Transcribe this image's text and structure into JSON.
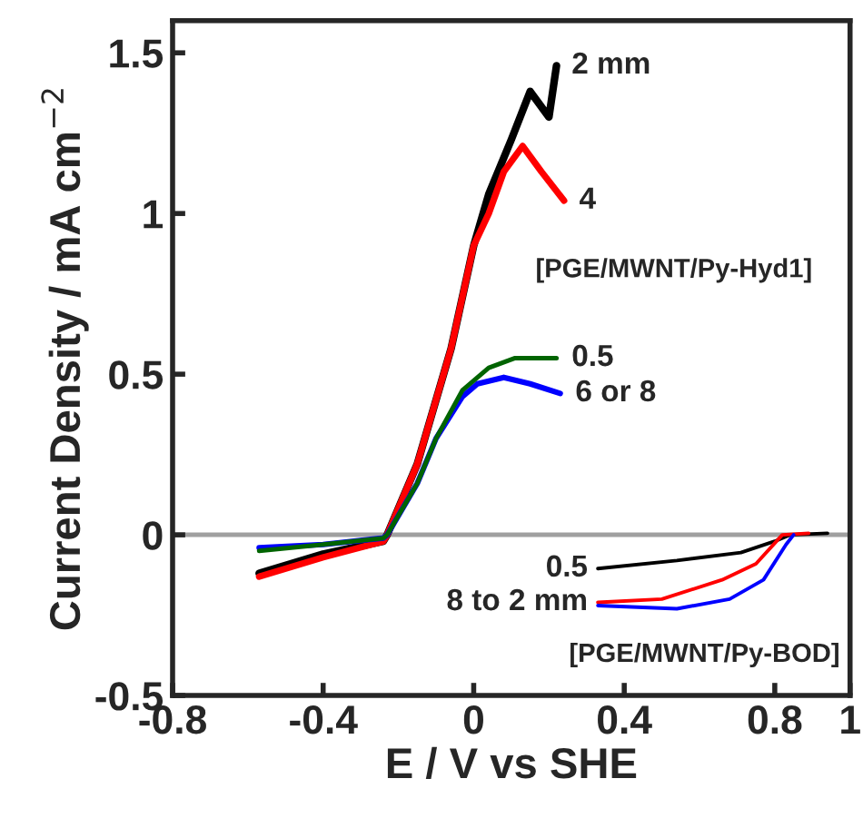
{
  "chart_data": {
    "type": "line",
    "xlabel": "E / V vs SHE",
    "ylabel": "Current Density / mA cm$^{−2}$",
    "xlim": [
      -0.8,
      1
    ],
    "xticks": [
      -0.8,
      -0.4,
      0,
      0.4,
      0.8,
      1
    ],
    "ylim": [
      -0.5,
      1.6
    ],
    "yticks": [
      -0.5,
      0,
      0.5,
      1,
      1.5
    ],
    "grid": false,
    "legend": false,
    "series": [
      {
        "name": "2 mm",
        "color": "#000000",
        "x": [
          -0.57,
          -0.4,
          -0.24,
          -0.23,
          -0.15,
          -0.06,
          0,
          0.04,
          0.1,
          0.15,
          0.2,
          0.22
        ],
        "values": [
          -0.12,
          -0.06,
          -0.02,
          0,
          0.22,
          0.58,
          0.9,
          1.06,
          1.23,
          1.38,
          1.3,
          1.46
        ]
      },
      {
        "name": "4",
        "color": "#ff0000",
        "x": [
          -0.57,
          -0.4,
          -0.24,
          -0.23,
          -0.15,
          -0.06,
          0,
          0.04,
          0.08,
          0.13,
          0.18,
          0.24
        ],
        "values": [
          -0.13,
          -0.07,
          -0.02,
          0,
          0.22,
          0.58,
          0.9,
          1.0,
          1.13,
          1.21,
          1.13,
          1.04
        ]
      },
      {
        "name": "6 or 8",
        "color": "#0000ff",
        "x": [
          -0.57,
          -0.4,
          -0.24,
          -0.23,
          -0.15,
          -0.1,
          -0.03,
          0.01,
          0.08,
          0.15,
          0.23
        ],
        "values": [
          -0.04,
          -0.03,
          -0.01,
          0,
          0.16,
          0.3,
          0.43,
          0.47,
          0.49,
          0.47,
          0.44
        ]
      },
      {
        "name": "0.5",
        "color": "#006400",
        "x": [
          -0.57,
          -0.4,
          -0.24,
          -0.23,
          -0.15,
          -0.1,
          -0.03,
          0.04,
          0.11,
          0.16,
          0.22
        ],
        "values": [
          -0.05,
          -0.03,
          -0.01,
          0,
          0.16,
          0.3,
          0.45,
          0.52,
          0.55,
          0.55,
          0.55
        ]
      },
      {
        "name": "0.5",
        "color": "#000000",
        "x": [
          0.33,
          0.54,
          0.71,
          0.8,
          0.84,
          0.94
        ],
        "values": [
          -0.105,
          -0.08,
          -0.055,
          -0.02,
          0,
          0.005
        ]
      },
      {
        "name": "8 to 2 mm",
        "color": "#ff0000",
        "x": [
          0.33,
          0.5,
          0.66,
          0.75,
          0.82,
          0.89
        ],
        "values": [
          -0.21,
          -0.2,
          -0.14,
          -0.09,
          0,
          0.005
        ]
      },
      {
        "color": "#0000ff",
        "x": [
          0.33,
          0.54,
          0.68,
          0.77,
          0.83,
          0.85
        ],
        "values": [
          -0.22,
          -0.23,
          -0.2,
          -0.14,
          -0.03,
          0
        ]
      }
    ],
    "ref_lines": [
      {
        "axis": "y",
        "value": 0,
        "color": "#a0a0a0"
      }
    ],
    "annotations": [
      "[PGE/MWNT/Py-Hyd1]",
      "[PGE/MWNT/Py-BOD]"
    ]
  }
}
